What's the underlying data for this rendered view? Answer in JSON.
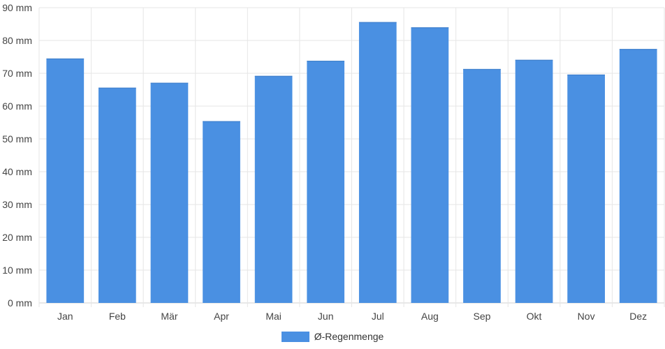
{
  "chart_data": {
    "type": "bar",
    "categories": [
      "Jan",
      "Feb",
      "Mär",
      "Apr",
      "Mai",
      "Jun",
      "Jul",
      "Aug",
      "Sep",
      "Okt",
      "Nov",
      "Dez"
    ],
    "series": [
      {
        "name": "Ø-Regenmenge",
        "values": [
          74.5,
          65.6,
          67.1,
          55.4,
          69.2,
          73.8,
          85.6,
          84.0,
          71.3,
          74.1,
          69.6,
          77.4
        ],
        "color": "#4a90e2"
      }
    ],
    "unit": "mm",
    "ylim": [
      0,
      90
    ],
    "yticks": [
      "0 mm",
      "10 mm",
      "20 mm",
      "30 mm",
      "40 mm",
      "50 mm",
      "60 mm",
      "70 mm",
      "80 mm",
      "90 mm"
    ],
    "grid": true,
    "legend_position": "bottom"
  }
}
